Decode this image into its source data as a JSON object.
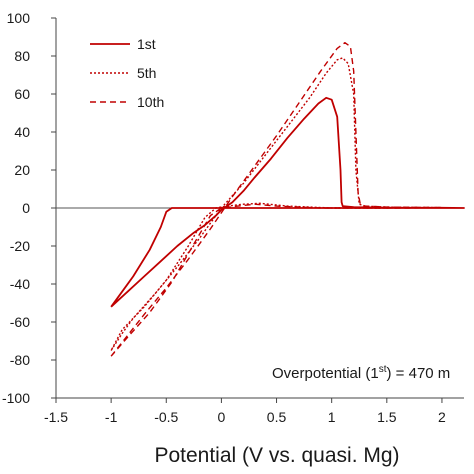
{
  "chart_data": {
    "type": "line",
    "title": "",
    "xlabel": "Potential (V vs. quasi. Mg)",
    "ylabel": "",
    "xlim": [
      -1.5,
      2.2
    ],
    "ylim": [
      -100,
      100
    ],
    "xticks": [
      "-1.5",
      "-1",
      "-0.5",
      "0",
      "0.5",
      "1",
      "1.5",
      "2"
    ],
    "yticks": [
      "100",
      "80",
      "60",
      "40",
      "20",
      "0",
      "-20",
      "-40",
      "-60",
      "-80",
      "-100"
    ],
    "legend_position": "top-left",
    "color": "#c00000",
    "series": [
      {
        "name": "1st",
        "style": "solid",
        "x": [
          -1.0,
          -0.85,
          -0.7,
          -0.55,
          -0.4,
          -0.25,
          -0.15,
          -0.05,
          0.0,
          0.1,
          0.2,
          0.3,
          0.45,
          0.6,
          0.75,
          0.88,
          0.95,
          1.0,
          1.05,
          1.08,
          1.09,
          1.1,
          1.2,
          1.5,
          1.8,
          2.0,
          2.2,
          1.8,
          1.4,
          1.0,
          0.5,
          0.0,
          -0.3,
          -0.45,
          -0.5,
          -0.55,
          -0.65,
          -0.8,
          -1.0
        ],
        "y": [
          -52,
          -44,
          -36,
          -28,
          -20,
          -13,
          -9,
          -4,
          -1,
          3,
          9,
          16,
          26,
          37,
          47,
          55,
          58,
          57,
          48,
          20,
          3,
          1,
          0.5,
          0.2,
          0.1,
          0.1,
          0,
          0,
          0,
          0,
          0,
          0,
          0,
          0,
          -2,
          -10,
          -22,
          -36,
          -52
        ]
      },
      {
        "name": "5th",
        "style": "dotted",
        "x": [
          -1.0,
          -0.9,
          -0.8,
          -0.6,
          -0.4,
          -0.2,
          0.0,
          0.2,
          0.4,
          0.6,
          0.8,
          0.95,
          1.05,
          1.1,
          1.15,
          1.2,
          1.22,
          1.25,
          1.3,
          1.5,
          1.8,
          2.0,
          1.8,
          1.5,
          1.0,
          0.6,
          0.35,
          0.2,
          0.05,
          -0.05,
          -0.15,
          -0.3,
          -0.5,
          -0.7,
          -0.9,
          -1.0
        ],
        "y": [
          -75,
          -66,
          -58,
          -45,
          -31,
          -16,
          0,
          13,
          28,
          43,
          58,
          71,
          78,
          79,
          76,
          60,
          20,
          2,
          1,
          0.5,
          0.3,
          0.2,
          0.2,
          0,
          0,
          1,
          2.5,
          2,
          1,
          0,
          -5,
          -20,
          -38,
          -52,
          -64,
          -75
        ]
      },
      {
        "name": "10th",
        "style": "dashed",
        "x": [
          -1.0,
          -0.85,
          -0.7,
          -0.5,
          -0.3,
          -0.1,
          0.1,
          0.3,
          0.5,
          0.7,
          0.9,
          1.05,
          1.12,
          1.17,
          1.2,
          1.22,
          1.24,
          1.26,
          1.3,
          1.5,
          1.8,
          2.0,
          1.7,
          1.3,
          0.9,
          0.5,
          0.3,
          0.15,
          0.0,
          -0.1,
          -0.25,
          -0.45,
          -0.65,
          -0.85,
          -1.0
        ],
        "y": [
          -78,
          -67,
          -56,
          -42,
          -27,
          -11,
          6,
          22,
          38,
          55,
          72,
          84,
          87,
          85,
          72,
          40,
          8,
          2,
          1,
          0.5,
          0.3,
          0.2,
          0,
          0,
          0,
          1,
          2,
          1,
          0,
          -4,
          -19,
          -39,
          -55,
          -68,
          -78
        ]
      }
    ],
    "annotation": {
      "prefix": "Overpotential (1",
      "superscript": "st",
      "suffix": ") = 470 m"
    }
  }
}
